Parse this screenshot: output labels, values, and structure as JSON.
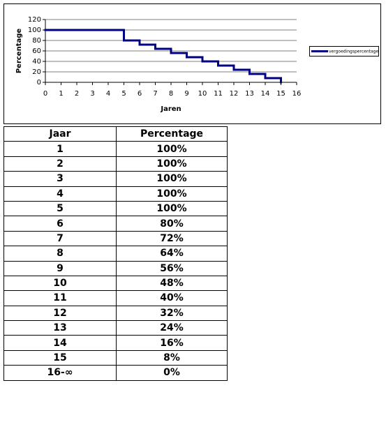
{
  "chart_data": {
    "type": "step",
    "step": "post",
    "x": [
      0,
      1,
      2,
      3,
      4,
      5,
      6,
      7,
      8,
      9,
      10,
      11,
      12,
      13,
      14,
      15
    ],
    "series": [
      {
        "name": "vergoedingspercentage",
        "color": "#000080",
        "values": [
          100,
          100,
          100,
          100,
          100,
          80,
          72,
          64,
          56,
          48,
          40,
          32,
          24,
          16,
          8,
          0
        ]
      }
    ],
    "xlim": [
      0,
      16
    ],
    "xticks": [
      0,
      1,
      2,
      3,
      4,
      5,
      6,
      7,
      8,
      9,
      10,
      11,
      12,
      13,
      14,
      15,
      16
    ],
    "ylim": [
      0,
      120
    ],
    "yticks": [
      0,
      20,
      40,
      60,
      80,
      100,
      120
    ],
    "xlabel": "Jaren",
    "ylabel": "Percentage",
    "grid": true,
    "legend": "right"
  },
  "table": {
    "header": [
      "Jaar",
      "Percentage"
    ],
    "rows": [
      [
        "1",
        "100%"
      ],
      [
        "2",
        "100%"
      ],
      [
        "3",
        "100%"
      ],
      [
        "4",
        "100%"
      ],
      [
        "5",
        "100%"
      ],
      [
        "6",
        "80%"
      ],
      [
        "7",
        "72%"
      ],
      [
        "8",
        "64%"
      ],
      [
        "9",
        "56%"
      ],
      [
        "10",
        "48%"
      ],
      [
        "11",
        "40%"
      ],
      [
        "12",
        "32%"
      ],
      [
        "13",
        "24%"
      ],
      [
        "14",
        "16%"
      ],
      [
        "15",
        "8%"
      ],
      [
        "16-∞",
        "0%"
      ]
    ]
  }
}
